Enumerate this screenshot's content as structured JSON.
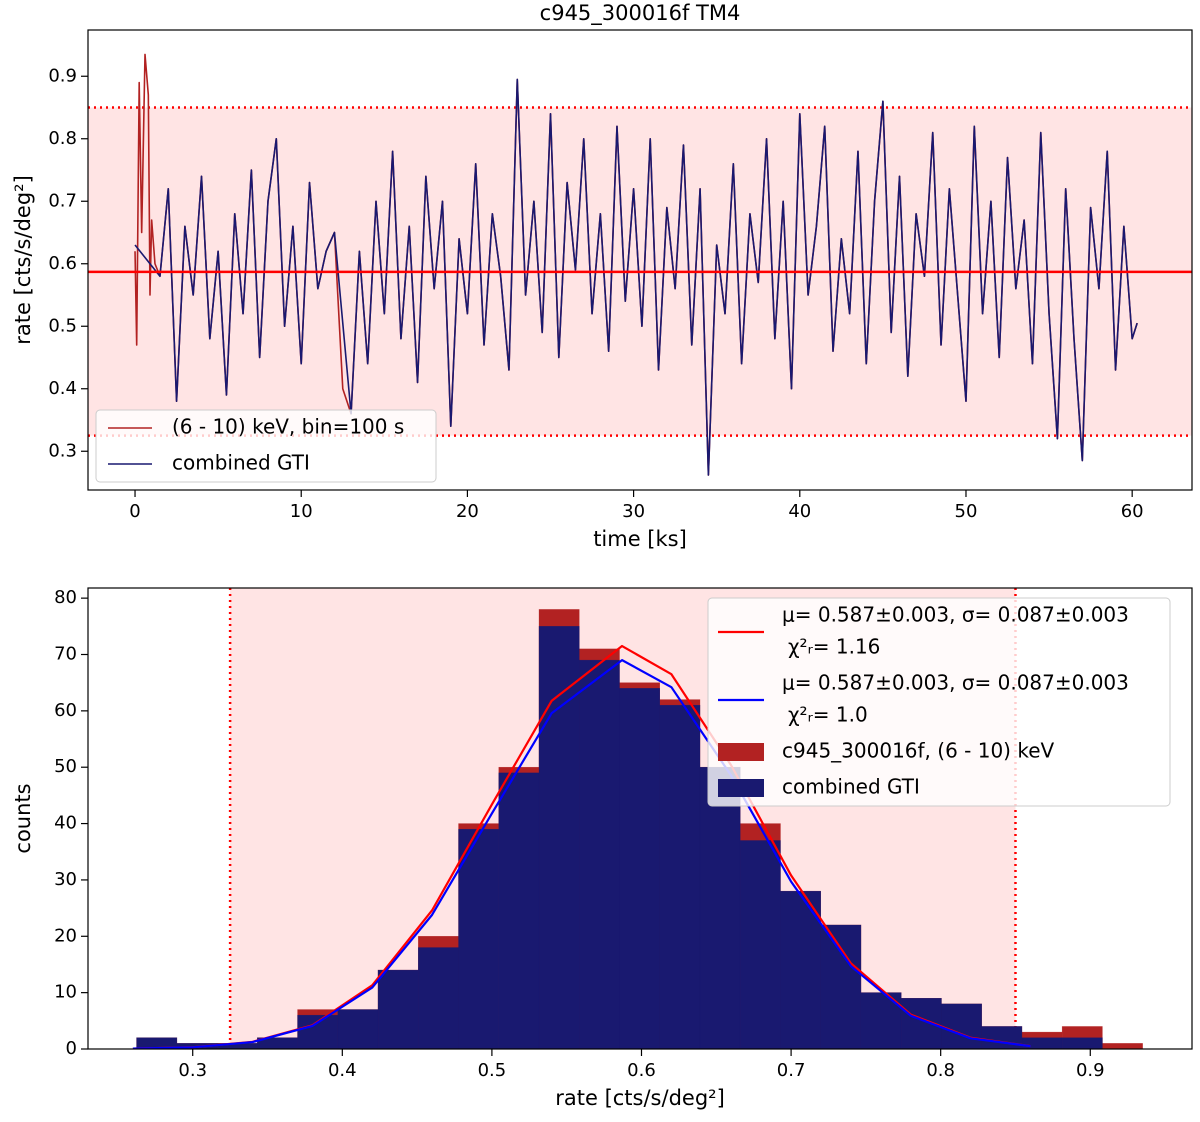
{
  "chart_data": [
    {
      "type": "line",
      "title": "c945_300016f TM4",
      "xlabel": "time [ks]",
      "ylabel": "rate [cts/s/deg²]",
      "xlim": [
        -2.83,
        63.6
      ],
      "ylim": [
        0.238,
        0.974
      ],
      "xticks": [
        0,
        10,
        20,
        30,
        40,
        50,
        60
      ],
      "yticks": [
        0.3,
        0.4,
        0.5,
        0.6,
        0.7,
        0.8,
        0.9
      ],
      "mean": 0.587,
      "mean_color": "#ff0000",
      "band": [
        0.325,
        0.85
      ],
      "band_color": "#ffe4e4",
      "legend": "lower left",
      "series": [
        {
          "name": "(6 - 10) keV, bin=100 s",
          "color": "#b22222",
          "x": [
            0,
            0.1,
            0.25,
            0.4,
            0.6,
            0.8,
            0.9,
            1.0,
            1.2,
            1.5,
            2.0,
            2.5,
            3.0,
            3.5,
            4.0,
            4.5,
            5.0,
            5.5,
            6.0,
            6.5,
            7.0,
            7.5,
            8.0,
            8.5,
            9.0,
            9.5,
            10.0,
            10.5,
            11.0,
            11.5,
            12.0,
            12.5,
            13.0,
            13.5,
            14.0,
            14.5,
            15.0,
            15.5,
            16.0,
            16.5,
            17.0,
            17.5,
            18.0,
            18.5,
            19.0,
            19.5,
            20.0,
            20.5,
            21.0,
            21.5,
            22.0,
            22.5,
            23.0,
            23.5,
            24.0,
            24.5,
            25.0,
            25.5,
            26.0,
            26.5,
            27.0,
            27.5,
            28.0,
            28.5,
            29.0,
            29.5,
            30.0,
            30.5,
            31.0,
            31.5,
            32.0,
            32.5,
            33.0,
            33.5,
            34.0,
            34.5,
            35.0,
            35.5,
            36.0,
            36.5,
            37.0,
            37.5,
            38.0,
            38.5,
            39.0,
            39.5,
            40.0,
            40.5,
            41.0,
            41.5,
            42.0,
            42.5,
            43.0,
            43.5,
            44.0,
            44.5,
            45.0,
            45.5,
            46.0,
            46.5,
            47.0,
            47.5,
            48.0,
            48.5,
            49.0,
            49.5,
            50.0,
            50.5,
            51.0,
            51.5,
            52.0,
            52.5,
            53.0,
            53.5,
            54.0,
            54.5,
            55.0,
            55.5,
            56.0,
            56.5,
            57.0,
            57.5,
            58.0,
            58.5,
            59.0,
            59.5,
            60.0,
            60.3
          ],
          "values": [
            0.62,
            0.47,
            0.89,
            0.65,
            0.935,
            0.87,
            0.55,
            0.67,
            0.6,
            0.58,
            0.72,
            0.38,
            0.66,
            0.55,
            0.74,
            0.48,
            0.62,
            0.39,
            0.68,
            0.52,
            0.75,
            0.45,
            0.7,
            0.8,
            0.5,
            0.66,
            0.44,
            0.73,
            0.56,
            0.62,
            0.65,
            0.4,
            0.36,
            0.62,
            0.44,
            0.7,
            0.52,
            0.78,
            0.48,
            0.66,
            0.41,
            0.74,
            0.56,
            0.7,
            0.34,
            0.64,
            0.52,
            0.76,
            0.47,
            0.68,
            0.58,
            0.43,
            0.895,
            0.55,
            0.7,
            0.49,
            0.84,
            0.45,
            0.73,
            0.59,
            0.8,
            0.52,
            0.68,
            0.46,
            0.82,
            0.54,
            0.72,
            0.5,
            0.8,
            0.43,
            0.69,
            0.56,
            0.79,
            0.47,
            0.72,
            0.262,
            0.63,
            0.52,
            0.76,
            0.44,
            0.68,
            0.57,
            0.8,
            0.48,
            0.7,
            0.4,
            0.84,
            0.55,
            0.66,
            0.82,
            0.46,
            0.64,
            0.52,
            0.78,
            0.44,
            0.7,
            0.86,
            0.49,
            0.74,
            0.42,
            0.68,
            0.58,
            0.81,
            0.47,
            0.72,
            0.55,
            0.38,
            0.82,
            0.52,
            0.7,
            0.45,
            0.77,
            0.56,
            0.67,
            0.44,
            0.81,
            0.52,
            0.32,
            0.72,
            0.48,
            0.285,
            0.69,
            0.56,
            0.78,
            0.43,
            0.66,
            0.48,
            0.505
          ]
        },
        {
          "name": "combined GTI",
          "color": "#191970",
          "x": [
            0,
            1.5,
            2.0,
            2.5,
            3.0,
            3.5,
            4.0,
            4.5,
            5.0,
            5.5,
            6.0,
            6.5,
            7.0,
            7.5,
            8.0,
            8.5,
            9.0,
            9.5,
            10.0,
            10.5,
            11.0,
            11.5,
            12.0,
            13.0,
            13.5,
            14.0,
            14.5,
            15.0,
            15.5,
            16.0,
            16.5,
            17.0,
            17.5,
            18.0,
            18.5,
            19.0,
            19.5,
            20.0,
            20.5,
            21.0,
            21.5,
            22.0,
            22.5,
            23.0,
            23.5,
            24.0,
            24.5,
            25.0,
            25.5,
            26.0,
            26.5,
            27.0,
            27.5,
            28.0,
            28.5,
            29.0,
            29.5,
            30.0,
            30.5,
            31.0,
            31.5,
            32.0,
            32.5,
            33.0,
            33.5,
            34.0,
            34.5,
            35.0,
            35.5,
            36.0,
            36.5,
            37.0,
            37.5,
            38.0,
            38.5,
            39.0,
            39.5,
            40.0,
            40.5,
            41.0,
            41.5,
            42.0,
            42.5,
            43.0,
            43.5,
            44.0,
            44.5,
            45.0,
            45.5,
            46.0,
            46.5,
            47.0,
            47.5,
            48.0,
            48.5,
            49.0,
            49.5,
            50.0,
            50.5,
            51.0,
            51.5,
            52.0,
            52.5,
            53.0,
            53.5,
            54.0,
            54.5,
            55.0,
            55.5,
            56.0,
            56.5,
            57.0,
            57.5,
            58.0,
            58.5,
            59.0,
            59.5,
            60.0,
            60.3
          ],
          "values": [
            0.63,
            0.58,
            0.72,
            0.38,
            0.66,
            0.55,
            0.74,
            0.48,
            0.62,
            0.39,
            0.68,
            0.52,
            0.75,
            0.45,
            0.7,
            0.8,
            0.5,
            0.66,
            0.44,
            0.73,
            0.56,
            0.62,
            0.65,
            0.36,
            0.62,
            0.44,
            0.7,
            0.52,
            0.78,
            0.48,
            0.66,
            0.41,
            0.74,
            0.56,
            0.7,
            0.34,
            0.64,
            0.52,
            0.76,
            0.47,
            0.68,
            0.58,
            0.43,
            0.895,
            0.55,
            0.7,
            0.49,
            0.84,
            0.45,
            0.73,
            0.59,
            0.8,
            0.52,
            0.68,
            0.46,
            0.82,
            0.54,
            0.72,
            0.5,
            0.8,
            0.43,
            0.69,
            0.56,
            0.79,
            0.47,
            0.72,
            0.262,
            0.63,
            0.52,
            0.76,
            0.44,
            0.68,
            0.57,
            0.8,
            0.48,
            0.7,
            0.4,
            0.84,
            0.55,
            0.66,
            0.82,
            0.46,
            0.64,
            0.52,
            0.78,
            0.44,
            0.7,
            0.86,
            0.49,
            0.74,
            0.42,
            0.68,
            0.58,
            0.81,
            0.47,
            0.72,
            0.55,
            0.38,
            0.82,
            0.52,
            0.7,
            0.45,
            0.77,
            0.56,
            0.67,
            0.44,
            0.81,
            0.52,
            0.32,
            0.72,
            0.48,
            0.285,
            0.69,
            0.56,
            0.78,
            0.43,
            0.66,
            0.48,
            0.505
          ]
        }
      ]
    },
    {
      "type": "histogram",
      "xlabel": "rate [cts/s/deg²]",
      "ylabel": "counts",
      "xlim": [
        0.23,
        0.968
      ],
      "ylim": [
        0,
        81.8
      ],
      "xticks": [
        0.3,
        0.4,
        0.5,
        0.6,
        0.7,
        0.8,
        0.9
      ],
      "yticks": [
        0,
        10,
        20,
        30,
        40,
        50,
        60,
        70,
        80
      ],
      "band": [
        0.325,
        0.85
      ],
      "band_color": "#ffe4e4",
      "legend": "upper right",
      "bins": [
        0.2625,
        0.2894,
        0.3163,
        0.3432,
        0.3701,
        0.397,
        0.4239,
        0.4508,
        0.4777,
        0.5046,
        0.5315,
        0.5584,
        0.5853,
        0.6122,
        0.6391,
        0.666,
        0.6929,
        0.7198,
        0.7467,
        0.7736,
        0.8005,
        0.8274,
        0.8543,
        0.8812,
        0.9081,
        0.935
      ],
      "series": [
        {
          "name": "c945_300016f, (6 - 10) keV",
          "color": "#b22222",
          "values": [
            2,
            1,
            1,
            2,
            7,
            7,
            14,
            20,
            40,
            50,
            78,
            71,
            65,
            62,
            50,
            40,
            28,
            22,
            10,
            9,
            8,
            4,
            3,
            4,
            1
          ]
        },
        {
          "name": "combined GTI",
          "color": "#191970",
          "values": [
            2,
            1,
            1,
            2,
            6,
            7,
            14,
            18,
            39,
            49,
            75,
            69,
            64,
            61,
            50,
            37,
            28,
            22,
            10,
            9,
            8,
            4,
            2,
            2,
            0
          ]
        }
      ],
      "curves": [
        {
          "name": "μ= 0.587±0.003, σ= 0.087±0.003",
          "chi2_label": "χ²ᵣ= 1.16",
          "color": "#ff0000",
          "x": [
            0.26,
            0.3,
            0.34,
            0.38,
            0.42,
            0.46,
            0.5,
            0.54,
            0.587,
            0.62,
            0.66,
            0.7,
            0.74,
            0.78,
            0.82,
            0.86
          ],
          "values": [
            0.06,
            0.31,
            1.27,
            4.2,
            11.3,
            24.6,
            43.4,
            61.8,
            71.5,
            66.5,
            50.3,
            30.8,
            15.2,
            6.1,
            2.0,
            0.52
          ]
        },
        {
          "name": "μ= 0.587±0.003, σ= 0.087±0.003",
          "chi2_label": "χ²ᵣ= 1.0",
          "color": "#0000ff",
          "x": [
            0.26,
            0.3,
            0.34,
            0.38,
            0.42,
            0.46,
            0.5,
            0.54,
            0.587,
            0.62,
            0.66,
            0.7,
            0.74,
            0.78,
            0.82,
            0.86
          ],
          "values": [
            0.06,
            0.3,
            1.23,
            4.1,
            10.9,
            23.8,
            41.8,
            59.6,
            69,
            64.2,
            48.5,
            29.7,
            14.7,
            5.9,
            1.9,
            0.5
          ]
        }
      ]
    }
  ]
}
